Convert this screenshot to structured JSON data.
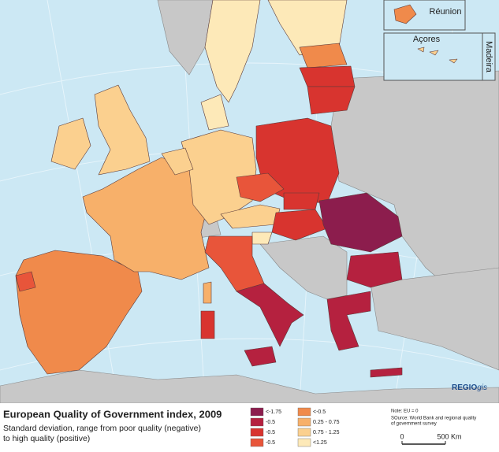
{
  "map": {
    "title": "European Quality of Government index, 2009",
    "subtitle": [
      "Standard deviation, range from poor quality (negative)",
      "to high quality (positive)"
    ],
    "legend": [
      {
        "label": "<-1.75",
        "color": "#8c1d4d"
      },
      {
        "label": "-0.5",
        "color": "#b5213f"
      },
      {
        "label": "-0.5",
        "color": "#d8342f"
      },
      {
        "label": "-0.5",
        "color": "#e8553a"
      },
      {
        "label": "<-0.5",
        "color": "#f08a4b"
      },
      {
        "label": "0.25 - 0.75",
        "color": "#f7b06a"
      },
      {
        "label": "0.75 - 1.25",
        "color": "#fbd08f"
      },
      {
        "label": "<1.25",
        "color": "#fde9b8"
      }
    ],
    "note": "Note: EU = 0",
    "source": [
      "SOurce: World Bank and regional quality",
      "of government survey"
    ],
    "scale": [
      "0",
      "500 Km"
    ],
    "insets": [
      "Réunion",
      "Açores",
      "Madeira"
    ],
    "logo": {
      "main": "REGIO",
      "suffix": "gis"
    }
  }
}
